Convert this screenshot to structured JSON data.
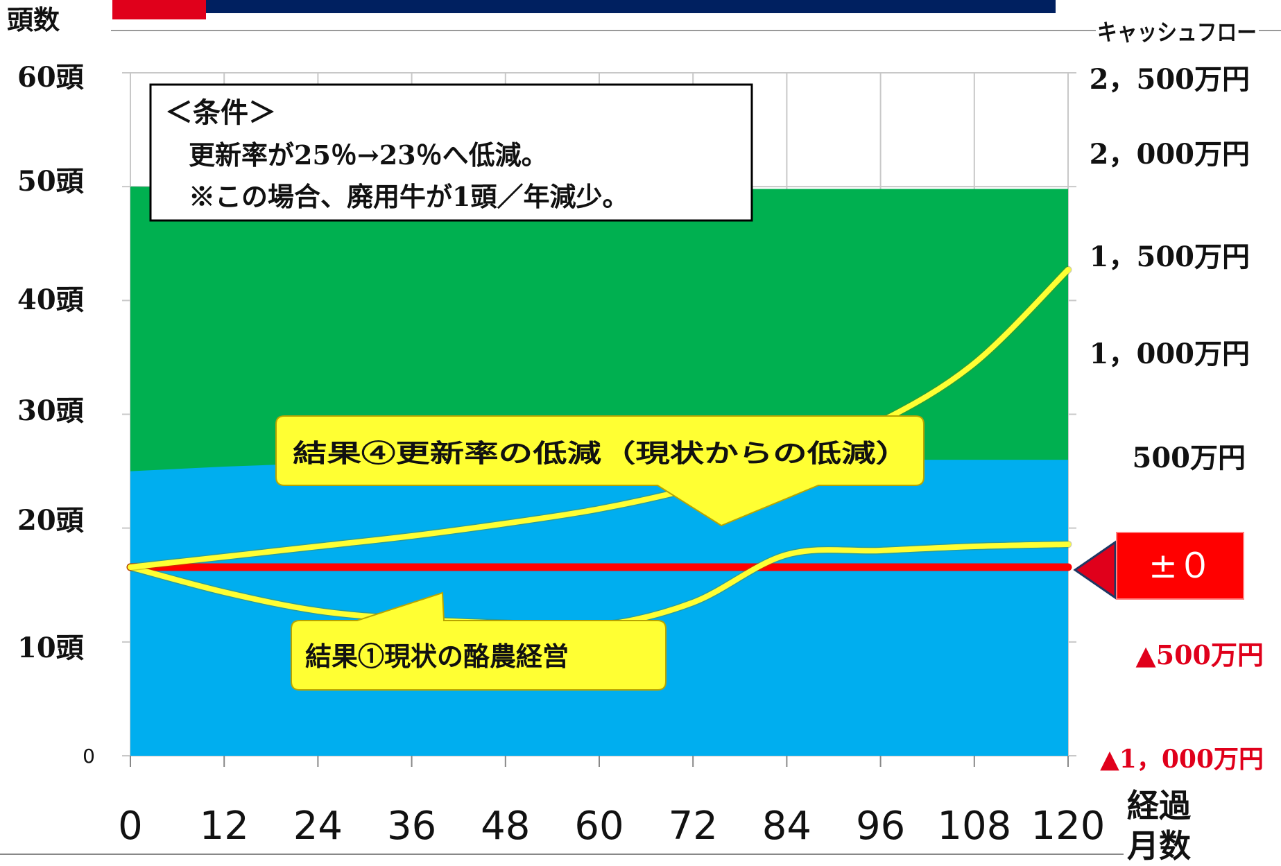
{
  "chart_data": {
    "type": "area",
    "y_left_label": "頭数",
    "y_right_label": "キャッシュフロー",
    "x_label_line1": "経過",
    "x_label_line2": "月数",
    "x_ticks": [
      "0",
      "12",
      "24",
      "36",
      "48",
      "60",
      "72",
      "84",
      "96",
      "108",
      "120"
    ],
    "y_left_ticks": [
      "0",
      "10頭",
      "20頭",
      "30頭",
      "40頭",
      "50頭",
      "60頭"
    ],
    "y_right_ticks": [
      "▲1，000万円",
      "▲500万円",
      "500万円",
      "1，000万円",
      "1，500万円",
      "2，000万円",
      "2，500万円"
    ],
    "y_right_zero_label": "±０",
    "xlim": [
      0,
      120
    ],
    "ylim_left": [
      0,
      60
    ],
    "grid": true,
    "area_series": [
      {
        "x": [
          0,
          12,
          24,
          36,
          48,
          60,
          72,
          84,
          96,
          108,
          120
        ],
        "values": [
          25,
          25.4,
          25.7,
          25.8,
          25.9,
          26,
          26,
          26,
          26,
          26,
          26
        ],
        "color": "#00aeef"
      },
      {
        "x": [
          0,
          12,
          24,
          36,
          48,
          60,
          72,
          84,
          96,
          108,
          120
        ],
        "values": [
          50,
          49.9,
          49.8,
          49.8,
          49.8,
          49.8,
          49.8,
          49.8,
          49.8,
          49.8,
          49.8
        ],
        "color": "#00b050"
      }
    ],
    "line_series": [
      {
        "x": [
          0,
          12,
          24,
          36,
          48,
          60,
          72,
          84,
          96,
          108,
          120
        ],
        "values": [
          0,
          0,
          0,
          0,
          0,
          0,
          0,
          0,
          0,
          0,
          0
        ],
        "color": "#ff0000"
      },
      {
        "x": [
          0,
          12,
          24,
          36,
          48,
          60,
          72,
          84,
          96,
          108,
          120
        ],
        "values": [
          0,
          -120,
          -210,
          -250,
          -270,
          -280,
          -170,
          60,
          80,
          100,
          110
        ],
        "color": "#ffff33"
      },
      {
        "x": [
          0,
          12,
          24,
          36,
          48,
          60,
          72,
          84,
          96,
          108,
          120
        ],
        "values": [
          0,
          50,
          100,
          150,
          210,
          280,
          380,
          520,
          700,
          980,
          1430
        ],
        "color": "#ffff33"
      }
    ],
    "annotations": {
      "condition_title": "＜条件＞",
      "condition_line1": "更新率が25％→23％へ低減。",
      "condition_line2": "※この場合、廃用牛が1頭／年減少。",
      "callout_result4": "結果④更新率の低減（現状からの低減）",
      "callout_result1": "結果①現状の酪農経営"
    }
  }
}
